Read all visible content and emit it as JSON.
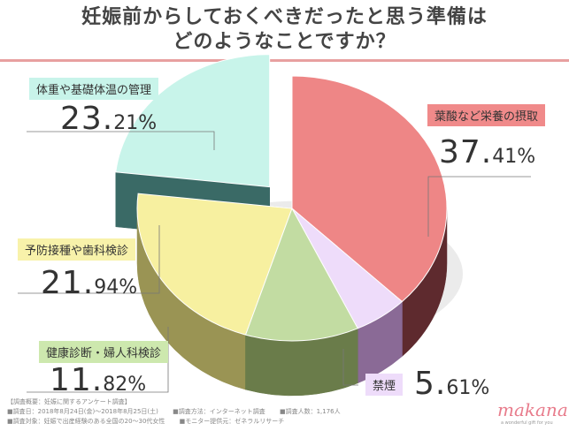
{
  "title_line1": "妊娠前からしておくべきだったと思う準備は",
  "title_line2": "どのようなことですか？",
  "colors": {
    "title_rule": "#e8a0a0",
    "slice_top": [
      "#ee8686",
      "#eedcfa",
      "#c2dca2",
      "#f7f0a0",
      "#c8f4ea"
    ],
    "slice_side": [
      "#5e2a2e",
      "#8a6a96",
      "#6a7c4a",
      "#9a9454",
      "#3a6a66"
    ],
    "tag_bg": [
      "#f08a8a",
      "#eedcfa",
      "#cde8ae",
      "#f8f2aa",
      "#c8f4ea"
    ]
  },
  "chart_data": {
    "type": "pie",
    "title": "妊娠前からしておくべきだったと思う準備はどのようなことですか？",
    "categories": [
      "葉酸など栄養の摂取",
      "禁煙",
      "健康診断・婦人科検診",
      "予防接種や歯科検診",
      "体重や基礎体温の管理"
    ],
    "values": [
      37.41,
      5.61,
      11.82,
      21.94,
      23.21
    ],
    "labels": [
      {
        "name": "葉酸など栄養の摂取",
        "int": "37.",
        "dec": "41%"
      },
      {
        "name": "禁煙",
        "int": "5.",
        "dec": "61%"
      },
      {
        "name": "健康診断・婦人科検診",
        "int": "11.",
        "dec": "82%"
      },
      {
        "name": "予防接種や歯科検診",
        "int": "21.",
        "dec": "94%"
      },
      {
        "name": "体重や基礎体温の管理",
        "int": "23.",
        "dec": "21%"
      }
    ],
    "exploded": "体重や基礎体温の管理"
  },
  "footer": {
    "heading": "【調査概要：妊娠に関するアンケート調査】",
    "row1": [
      "■調査日：2018年8月24日(金)〜2018年8月25日(土)",
      "■調査方法：インターネット調査",
      "■調査人数：1,176人"
    ],
    "row2": [
      "■調査対象：妊娠で出産経験のある全国の20〜30代女性",
      "■モニター提供元：ゼネラルリサーチ"
    ]
  },
  "logo": "makana",
  "logo_sub": "a wonderful gift for you"
}
